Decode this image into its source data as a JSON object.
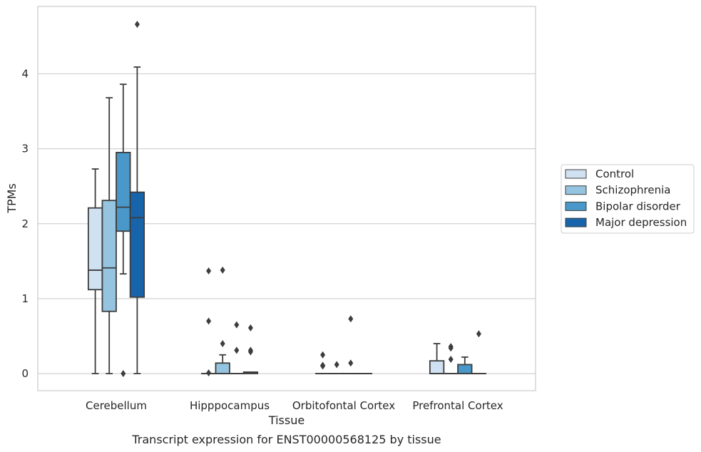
{
  "caption": "Transcript expression for ENST00000568125 by tissue",
  "chart_data": {
    "type": "box",
    "xlabel": "Tissue",
    "ylabel": "TPMs",
    "ylim": [
      -0.22,
      4.9
    ],
    "yticks": [
      0,
      1,
      2,
      3,
      4
    ],
    "grid": "horizontal",
    "legend_position": "right",
    "categories": [
      "Cerebellum",
      "Hipppocampus",
      "Orbitofontal Cortex",
      "Prefrontal Cortex"
    ],
    "series": [
      {
        "name": "Control",
        "color": "#d0e1f2",
        "boxes": [
          {
            "q1": 1.12,
            "median": 1.38,
            "q3": 2.21,
            "whislo": 0.0,
            "whishi": 2.73,
            "outliers": []
          },
          {
            "q1": 0.0,
            "median": 0.0,
            "q3": 0.0,
            "whislo": 0.0,
            "whishi": 0.0,
            "outliers": [
              1.37,
              0.7,
              0.01
            ]
          },
          {
            "q1": 0.0,
            "median": 0.0,
            "q3": 0.0,
            "whislo": 0.0,
            "whishi": 0.0,
            "outliers": [
              0.25,
              0.11,
              0.1
            ]
          },
          {
            "q1": 0.0,
            "median": 0.0,
            "q3": 0.17,
            "whislo": 0.0,
            "whishi": 0.4,
            "outliers": []
          }
        ]
      },
      {
        "name": "Schizophrenia",
        "color": "#94c4df",
        "boxes": [
          {
            "q1": 0.83,
            "median": 1.41,
            "q3": 2.31,
            "whislo": 0.0,
            "whishi": 3.68,
            "outliers": []
          },
          {
            "q1": 0.0,
            "median": 0.0,
            "q3": 0.14,
            "whislo": 0.0,
            "whishi": 0.25,
            "outliers": [
              1.38,
              0.4
            ]
          },
          {
            "q1": 0.0,
            "median": 0.0,
            "q3": 0.0,
            "whislo": 0.0,
            "whishi": 0.0,
            "outliers": [
              0.12
            ]
          },
          {
            "q1": 0.0,
            "median": 0.0,
            "q3": 0.0,
            "whislo": 0.0,
            "whishi": 0.0,
            "outliers": [
              0.36,
              0.34,
              0.19
            ]
          }
        ]
      },
      {
        "name": "Bipolar disorder",
        "color": "#4a98c9",
        "boxes": [
          {
            "q1": 1.9,
            "median": 2.22,
            "q3": 2.95,
            "whislo": 1.33,
            "whishi": 3.86,
            "outliers": [
              0.0
            ]
          },
          {
            "q1": 0.0,
            "median": 0.0,
            "q3": 0.0,
            "whislo": 0.0,
            "whishi": 0.0,
            "outliers": [
              0.65,
              0.31
            ]
          },
          {
            "q1": 0.0,
            "median": 0.0,
            "q3": 0.0,
            "whislo": 0.0,
            "whishi": 0.0,
            "outliers": [
              0.73,
              0.14
            ]
          },
          {
            "q1": 0.0,
            "median": 0.0,
            "q3": 0.12,
            "whislo": 0.0,
            "whishi": 0.22,
            "outliers": []
          }
        ]
      },
      {
        "name": "Major depression",
        "color": "#1764ab",
        "boxes": [
          {
            "q1": 1.02,
            "median": 2.08,
            "q3": 2.42,
            "whislo": 0.0,
            "whishi": 4.09,
            "outliers": [
              4.66
            ]
          },
          {
            "q1": 0.0,
            "median": 0.01,
            "q3": 0.02,
            "whislo": 0.0,
            "whishi": 0.02,
            "outliers": [
              0.61,
              0.31,
              0.29
            ]
          },
          {
            "q1": 0.0,
            "median": 0.0,
            "q3": 0.0,
            "whislo": 0.0,
            "whishi": 0.0,
            "outliers": []
          },
          {
            "q1": 0.0,
            "median": 0.0,
            "q3": 0.0,
            "whislo": 0.0,
            "whishi": 0.0,
            "outliers": [
              0.53
            ]
          }
        ]
      }
    ]
  }
}
